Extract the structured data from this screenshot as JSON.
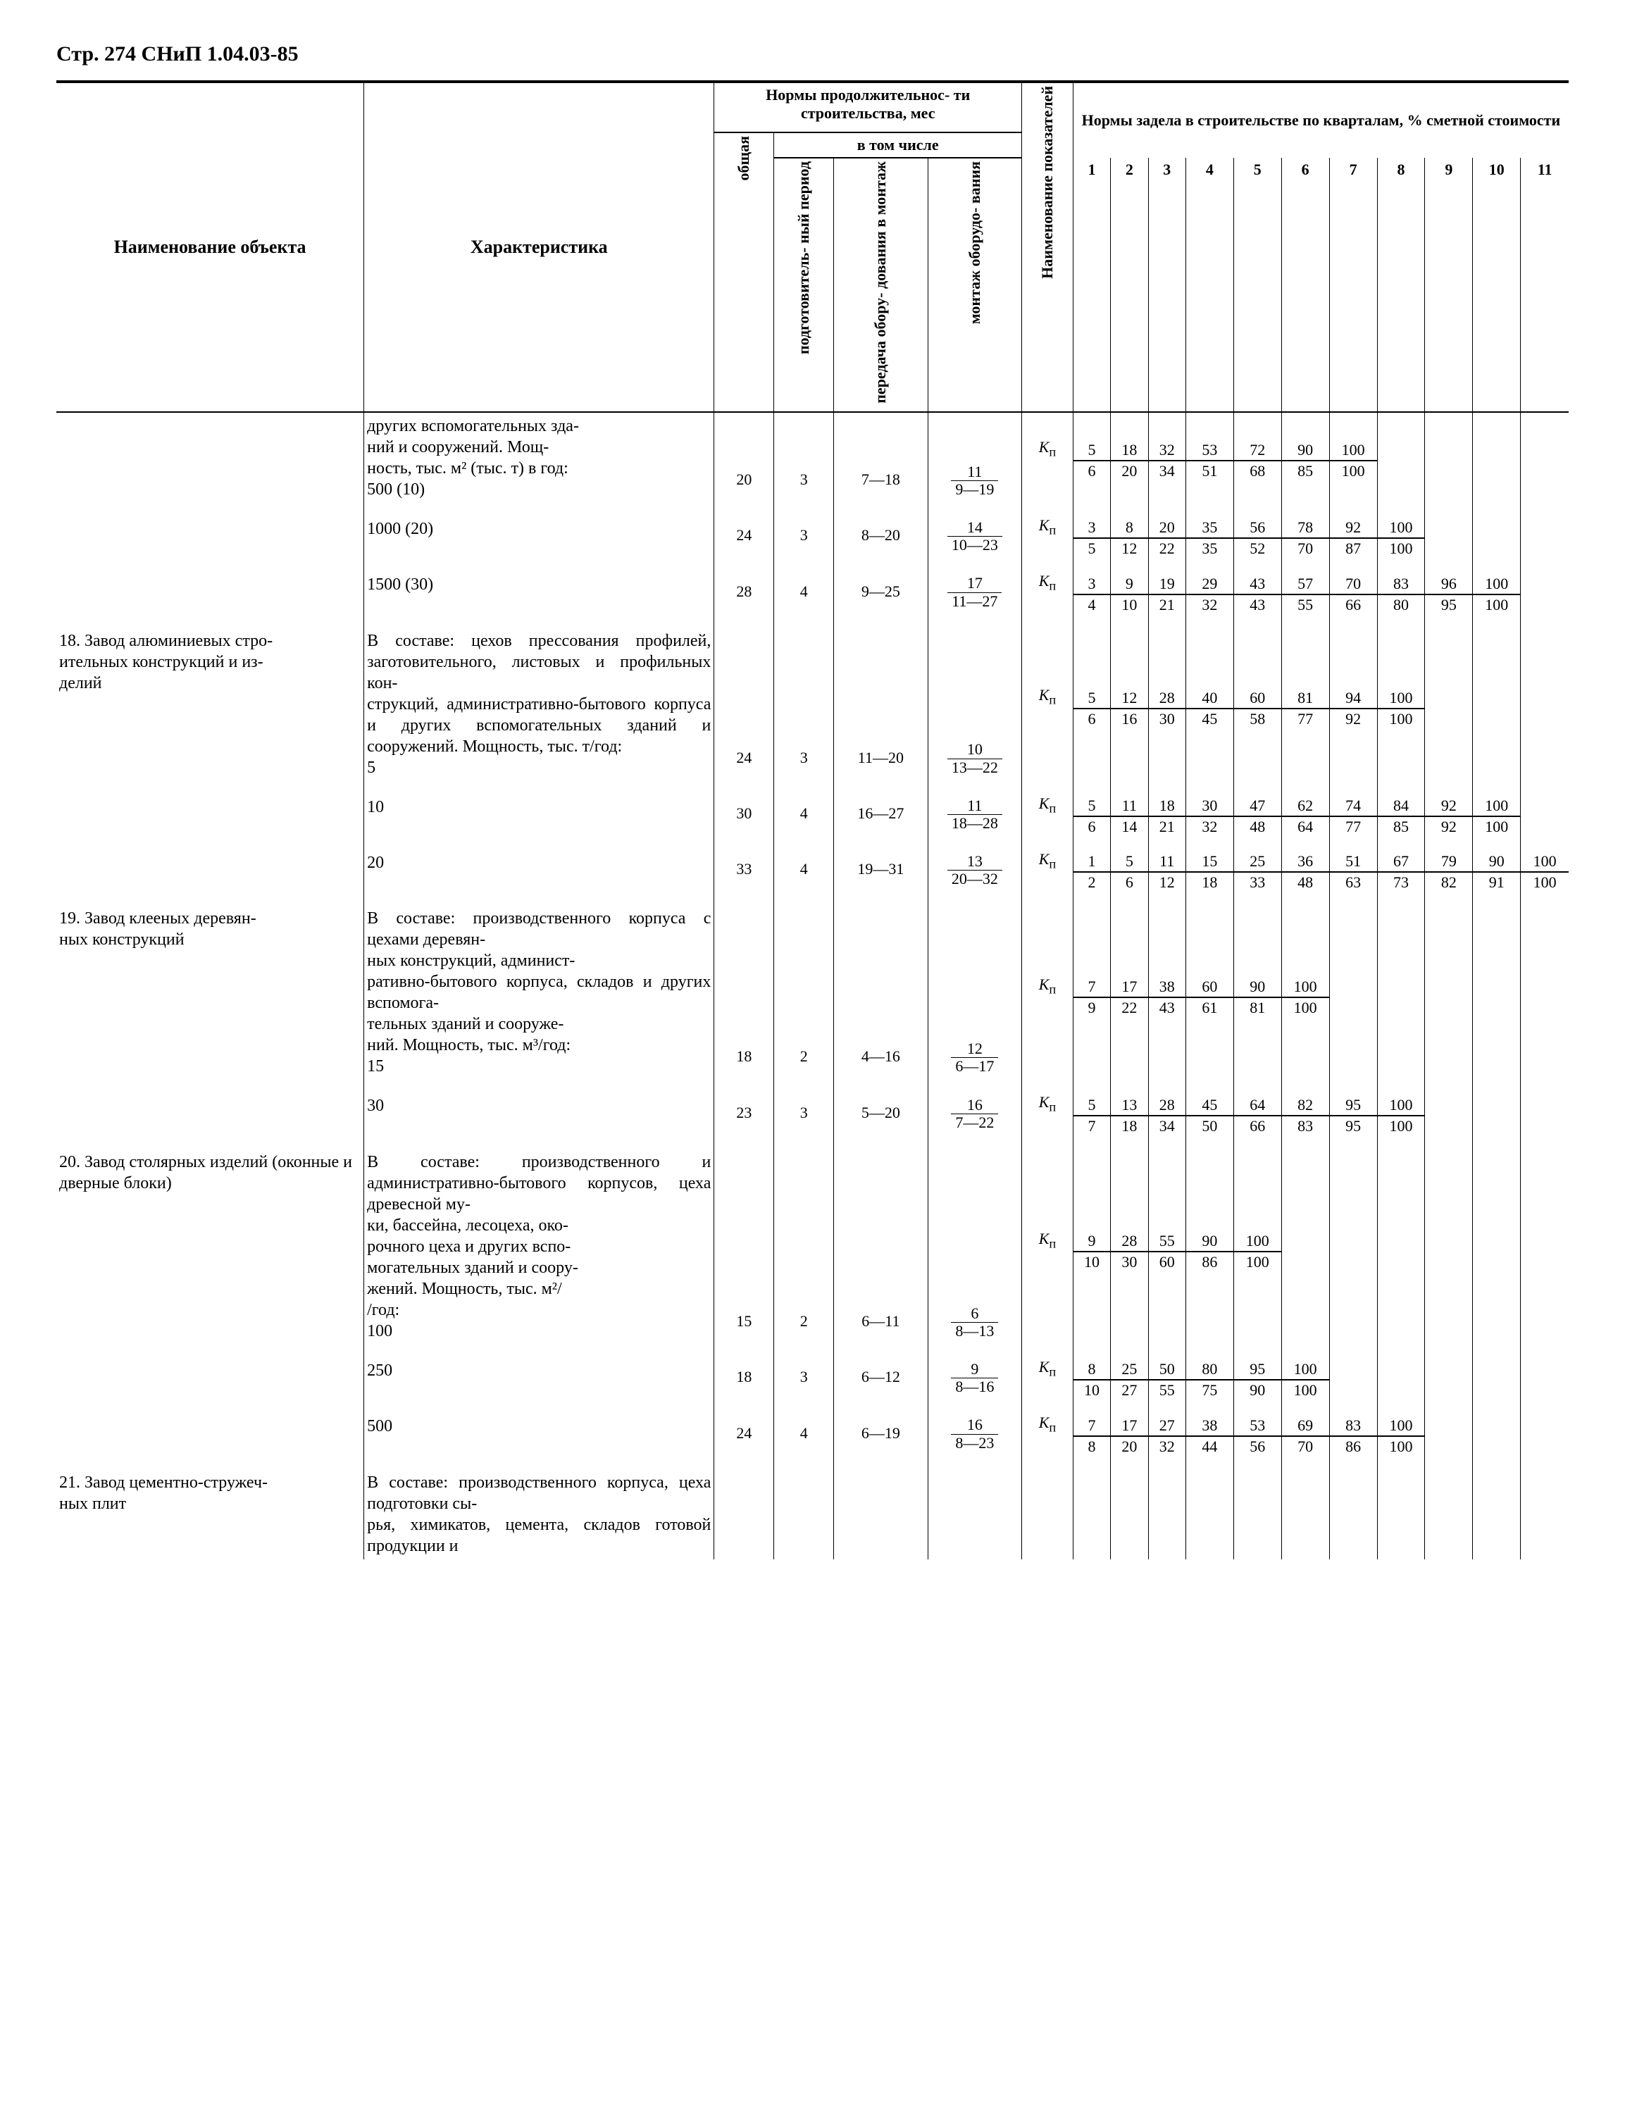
{
  "page_header": "Стр. 274 СНиП 1.04.03-85",
  "head": {
    "col_object": "Наименование объекта",
    "col_char": "Характеристика",
    "dur_group": "Нормы продолжительнос-\nти строительства, мес",
    "incl": "в том числе",
    "c_total": "общая",
    "c_prep": "подготовитель-\nный период",
    "c_trans": "передача обору-\nдования в монтаж",
    "c_mount": "монтаж оборудо-\nвания",
    "c_indic": "Наименование показателей",
    "norms": "Нормы задела в строительстве по кварталам, % сметной стоимости",
    "q": [
      "1",
      "2",
      "3",
      "4",
      "5",
      "6",
      "7",
      "8",
      "9",
      "10",
      "11"
    ]
  },
  "rows": [
    {
      "name": "",
      "desc": "других вспомогательных зда-\nний и сооружений. Мощ-\nность, тыс. м² (тыс. т) в год:\n500 (10)",
      "total": "20",
      "prep": "3",
      "trans": "7—18",
      "mount_top": "11",
      "mount_bot": "9—19",
      "dual": [
        {
          "k": "Кп",
          "v": [
            "5",
            "18",
            "32",
            "53",
            "72",
            "90",
            "100",
            "",
            "",
            "",
            ""
          ]
        },
        {
          "k": "",
          "v": [
            "6",
            "20",
            "34",
            "51",
            "68",
            "85",
            "100",
            "",
            "",
            "",
            ""
          ]
        }
      ]
    },
    {
      "name": "",
      "desc": "1000 (20)",
      "total": "24",
      "prep": "3",
      "trans": "8—20",
      "mount_top": "14",
      "mount_bot": "10—23",
      "dual": [
        {
          "k": "Кп",
          "v": [
            "3",
            "8",
            "20",
            "35",
            "56",
            "78",
            "92",
            "100",
            "",
            "",
            ""
          ]
        },
        {
          "k": "",
          "v": [
            "5",
            "12",
            "22",
            "35",
            "52",
            "70",
            "87",
            "100",
            "",
            "",
            ""
          ]
        }
      ]
    },
    {
      "name": "",
      "desc": "1500 (30)",
      "total": "28",
      "prep": "4",
      "trans": "9—25",
      "mount_top": "17",
      "mount_bot": "11—27",
      "dual": [
        {
          "k": "Кп",
          "v": [
            "3",
            "9",
            "19",
            "29",
            "43",
            "57",
            "70",
            "83",
            "96",
            "100",
            ""
          ]
        },
        {
          "k": "",
          "v": [
            "4",
            "10",
            "21",
            "32",
            "43",
            "55",
            "66",
            "80",
            "95",
            "100",
            ""
          ]
        }
      ]
    },
    {
      "name": "18. Завод алюминиевых стро-\nительных конструкций и из-\nделий",
      "desc": "В составе: цехов прессования профилей, заготовительного, листовых и профильных кон-\nструкций, административно-бытового корпуса и других вспомогательных зданий и сооружений. Мощность, тыс. т/год:\n5",
      "total": "24",
      "prep": "3",
      "trans": "11—20",
      "mount_top": "10",
      "mount_bot": "13—22",
      "dual": [
        {
          "k": "Кп",
          "v": [
            "5",
            "12",
            "28",
            "40",
            "60",
            "81",
            "94",
            "100",
            "",
            "",
            ""
          ]
        },
        {
          "k": "",
          "v": [
            "6",
            "16",
            "30",
            "45",
            "58",
            "77",
            "92",
            "100",
            "",
            "",
            ""
          ]
        }
      ]
    },
    {
      "name": "",
      "desc": "10",
      "total": "30",
      "prep": "4",
      "trans": "16—27",
      "mount_top": "11",
      "mount_bot": "18—28",
      "dual": [
        {
          "k": "Кп",
          "v": [
            "5",
            "11",
            "18",
            "30",
            "47",
            "62",
            "74",
            "84",
            "92",
            "100",
            ""
          ]
        },
        {
          "k": "",
          "v": [
            "6",
            "14",
            "21",
            "32",
            "48",
            "64",
            "77",
            "85",
            "92",
            "100",
            ""
          ]
        }
      ]
    },
    {
      "name": "",
      "desc": "20",
      "total": "33",
      "prep": "4",
      "trans": "19—31",
      "mount_top": "13",
      "mount_bot": "20—32",
      "dual": [
        {
          "k": "Кп",
          "v": [
            "1",
            "5",
            "11",
            "15",
            "25",
            "36",
            "51",
            "67",
            "79",
            "90",
            "100"
          ]
        },
        {
          "k": "",
          "v": [
            "2",
            "6",
            "12",
            "18",
            "33",
            "48",
            "63",
            "73",
            "82",
            "91",
            "100"
          ]
        }
      ]
    },
    {
      "name": "19. Завод клееных деревян-\nных конструкций",
      "desc": "В составе: производственного корпуса с цехами деревян-\nных конструкций, админист-\nративно-бытового корпуса, складов и других вспомога-\nтельных зданий и сооруже-\nний. Мощность, тыс. м³/год:\n15",
      "total": "18",
      "prep": "2",
      "trans": "4—16",
      "mount_top": "12",
      "mount_bot": "6—17",
      "dual": [
        {
          "k": "Кп",
          "v": [
            "7",
            "17",
            "38",
            "60",
            "90",
            "100",
            "",
            "",
            "",
            "",
            ""
          ]
        },
        {
          "k": "",
          "v": [
            "9",
            "22",
            "43",
            "61",
            "81",
            "100",
            "",
            "",
            "",
            "",
            ""
          ]
        }
      ]
    },
    {
      "name": "",
      "desc": "30",
      "total": "23",
      "prep": "3",
      "trans": "5—20",
      "mount_top": "16",
      "mount_bot": "7—22",
      "dual": [
        {
          "k": "Кп",
          "v": [
            "5",
            "13",
            "28",
            "45",
            "64",
            "82",
            "95",
            "100",
            "",
            "",
            ""
          ]
        },
        {
          "k": "",
          "v": [
            "7",
            "18",
            "34",
            "50",
            "66",
            "83",
            "95",
            "100",
            "",
            "",
            ""
          ]
        }
      ]
    },
    {
      "name": "20. Завод столярных изделий (оконные и дверные блоки)",
      "desc": "В составе: производственного и административно-бытового корпусов, цеха древесной му-\nки, бассейна, лесоцеха, око-\nрочного цеха и других вспо-\nмогательных зданий и соору-\nжений. Мощность, тыс. м²/\n/год:\n100",
      "total": "15",
      "prep": "2",
      "trans": "6—11",
      "mount_top": "6",
      "mount_bot": "8—13",
      "dual": [
        {
          "k": "Кп",
          "v": [
            "9",
            "28",
            "55",
            "90",
            "100",
            "",
            "",
            "",
            "",
            "",
            ""
          ]
        },
        {
          "k": "",
          "v": [
            "10",
            "30",
            "60",
            "86",
            "100",
            "",
            "",
            "",
            "",
            "",
            ""
          ]
        }
      ]
    },
    {
      "name": "",
      "desc": "250",
      "total": "18",
      "prep": "3",
      "trans": "6—12",
      "mount_top": "9",
      "mount_bot": "8—16",
      "dual": [
        {
          "k": "Кп",
          "v": [
            "8",
            "25",
            "50",
            "80",
            "95",
            "100",
            "",
            "",
            "",
            "",
            ""
          ]
        },
        {
          "k": "",
          "v": [
            "10",
            "27",
            "55",
            "75",
            "90",
            "100",
            "",
            "",
            "",
            "",
            ""
          ]
        }
      ]
    },
    {
      "name": "",
      "desc": "500",
      "total": "24",
      "prep": "4",
      "trans": "6—19",
      "mount_top": "16",
      "mount_bot": "8—23",
      "dual": [
        {
          "k": "Кп",
          "v": [
            "7",
            "17",
            "27",
            "38",
            "53",
            "69",
            "83",
            "100",
            "",
            "",
            ""
          ]
        },
        {
          "k": "",
          "v": [
            "8",
            "20",
            "32",
            "44",
            "56",
            "70",
            "86",
            "100",
            "",
            "",
            ""
          ]
        }
      ]
    },
    {
      "name": "21. Завод цементно-стружеч-\nных плит",
      "desc": "В составе: производственного корпуса, цеха подготовки сы-\nрья, химикатов, цемента, складов готовой продукции и",
      "no_data": true
    }
  ]
}
